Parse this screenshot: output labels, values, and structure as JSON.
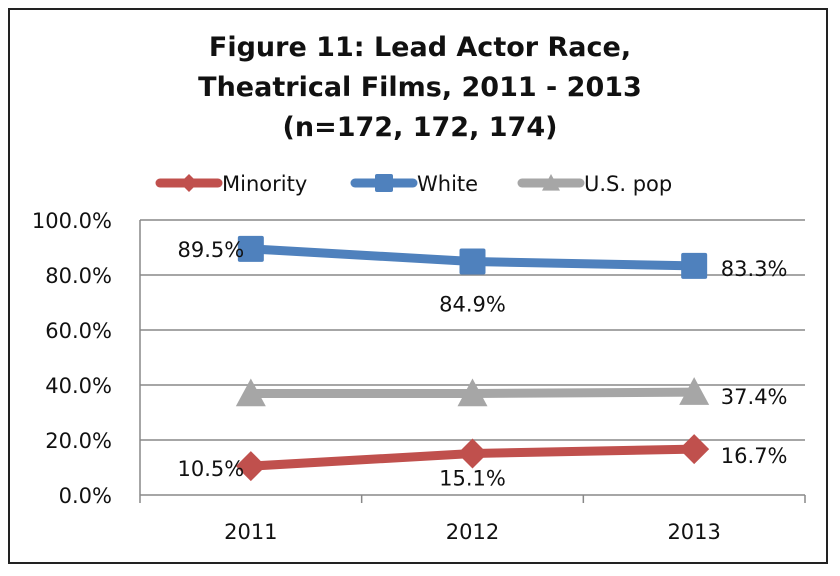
{
  "chart_data": {
    "type": "line",
    "title_lines": [
      "Figure 11:  Lead Actor Race,",
      "Theatrical Films, 2011 - 2013",
      "(n=172, 172, 174)"
    ],
    "categories": [
      "2011",
      "2012",
      "2013"
    ],
    "ylim": [
      0,
      100
    ],
    "yticks": [
      "0.0%",
      "20.0%",
      "40.0%",
      "60.0%",
      "80.0%",
      "100.0%"
    ],
    "grid": true,
    "legend_position": "top",
    "series": [
      {
        "name": "Minority",
        "values": [
          10.5,
          15.1,
          16.7
        ],
        "labels": [
          "10.5%",
          "15.1%",
          "16.7%"
        ],
        "color": "#c0504d",
        "marker": "diamond"
      },
      {
        "name": "White",
        "values": [
          89.5,
          84.9,
          83.3
        ],
        "labels": [
          "89.5%",
          "84.9%",
          "83.3%"
        ],
        "color": "#4f81bd",
        "marker": "square"
      },
      {
        "name": "U.S. pop",
        "values": [
          36.9,
          36.9,
          37.4
        ],
        "labels": [
          "",
          "",
          "37.4%"
        ],
        "color": "#a6a6a6",
        "marker": "triangle"
      }
    ]
  }
}
